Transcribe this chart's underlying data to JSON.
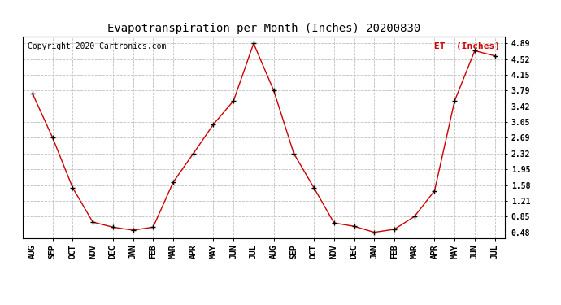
{
  "title": "Evapotranspiration per Month (Inches) 20200830",
  "copyright_text": "Copyright 2020 Cartronics.com",
  "legend_label": "ET  (Inches)",
  "months": [
    "AUG",
    "SEP",
    "OCT",
    "NOV",
    "DEC",
    "JAN",
    "FEB",
    "MAR",
    "APR",
    "MAY",
    "JUN",
    "JUL",
    "AUG",
    "SEP",
    "OCT",
    "NOV",
    "DEC",
    "JAN",
    "FEB",
    "MAR",
    "APR",
    "MAY",
    "JUN",
    "JUL"
  ],
  "values": [
    3.72,
    2.69,
    1.52,
    0.72,
    0.6,
    0.53,
    0.6,
    1.65,
    2.32,
    3.0,
    3.55,
    4.89,
    3.79,
    2.32,
    1.52,
    0.7,
    0.62,
    0.48,
    0.55,
    0.85,
    1.45,
    3.55,
    4.72,
    4.6
  ],
  "yticks": [
    0.48,
    0.85,
    1.21,
    1.58,
    1.95,
    2.32,
    2.69,
    3.05,
    3.42,
    3.79,
    4.15,
    4.52,
    4.89
  ],
  "ymin": 0.35,
  "ymax": 5.05,
  "line_color": "#cc0000",
  "marker_color": "#000000",
  "title_fontsize": 10,
  "copyright_fontsize": 7,
  "legend_fontsize": 8,
  "tick_label_fontsize": 7,
  "background_color": "#ffffff",
  "grid_color": "#c0c0c0"
}
